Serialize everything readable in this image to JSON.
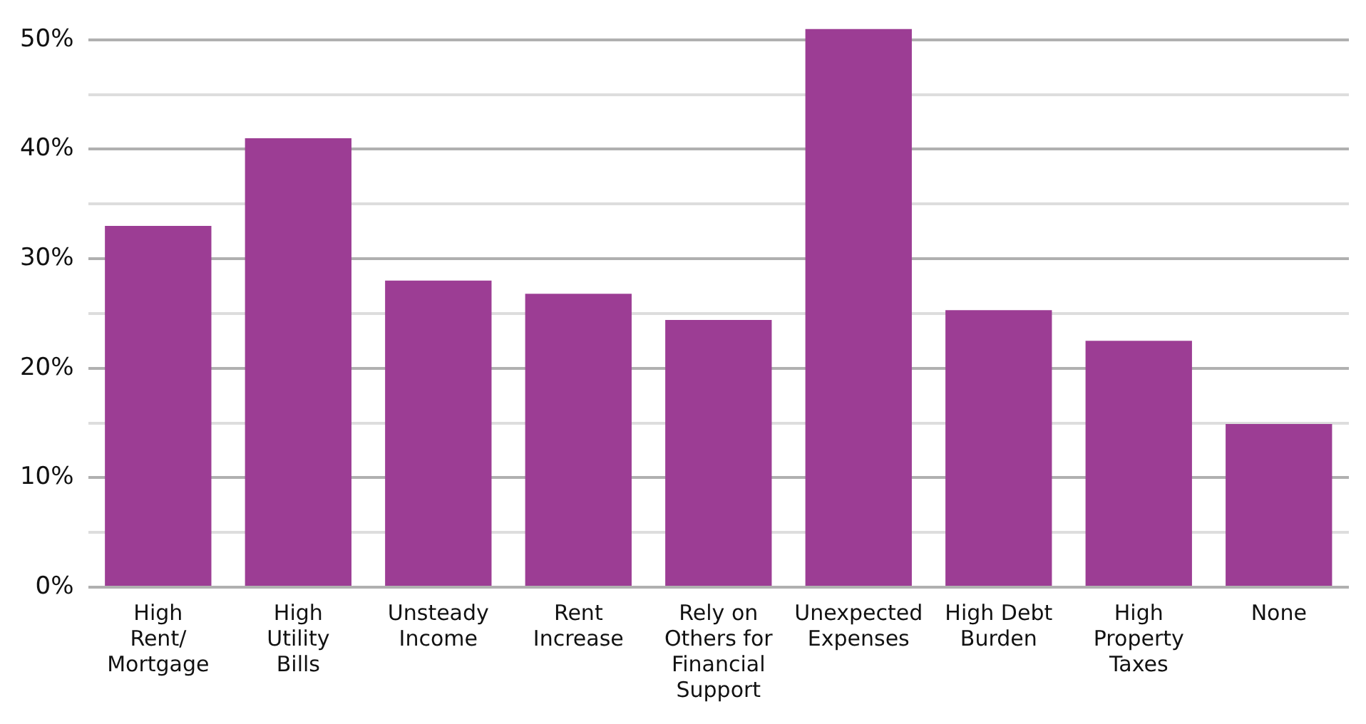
{
  "chart_data": {
    "type": "bar",
    "categories": [
      "High Rent/ Mortgage",
      "High Utility Bills",
      "Unsteady Income",
      "Rent Increase",
      "Rely on Others for Financial Support",
      "Unexpected Expenses",
      "High Debt Burden",
      "High Property Taxes",
      "None"
    ],
    "values": [
      33,
      41,
      28,
      26.8,
      24.4,
      51,
      25.3,
      22.5,
      14.9
    ],
    "color": "#9c3d94",
    "ylim": [
      0,
      51
    ],
    "yticks": [
      {
        "value": 0,
        "label": "0%"
      },
      {
        "value": 5,
        "label": null
      },
      {
        "value": 10,
        "label": "10%"
      },
      {
        "value": 15,
        "label": null
      },
      {
        "value": 20,
        "label": "20%"
      },
      {
        "value": 25,
        "label": null
      },
      {
        "value": 30,
        "label": "30%"
      },
      {
        "value": 35,
        "label": null
      },
      {
        "value": 40,
        "label": "40%"
      },
      {
        "value": 45,
        "label": null
      },
      {
        "value": 50,
        "label": "50%"
      }
    ],
    "grid": "y"
  }
}
